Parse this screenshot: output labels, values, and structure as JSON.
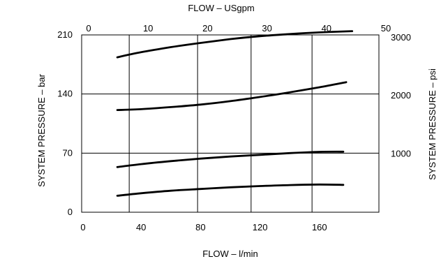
{
  "chart_data": {
    "type": "line",
    "title": "",
    "x_bottom": {
      "label": "FLOW – l/min",
      "lim": [
        0,
        200
      ],
      "ticks": [
        0,
        40,
        80,
        120,
        160
      ],
      "tick_labels": [
        "0",
        "40",
        "80",
        "120",
        "160"
      ]
    },
    "x_top": {
      "label": "FLOW – USgpm",
      "lim": [
        0,
        50
      ],
      "ticks": [
        0,
        10,
        20,
        30,
        40,
        50
      ],
      "tick_labels": [
        "0",
        "10",
        "20",
        "30",
        "40",
        "50"
      ]
    },
    "y_left": {
      "label": "SYSTEM PRESSURE – bar",
      "lim": [
        0,
        210
      ],
      "ticks": [
        0,
        70,
        140,
        210
      ],
      "tick_labels": [
        "0",
        "70",
        "140",
        "210"
      ]
    },
    "y_right": {
      "label": "SYSTEM PRESSURE – psi",
      "ticks": [
        1000,
        2000,
        3000
      ],
      "tick_labels": [
        "1000",
        "2000",
        "3000"
      ]
    },
    "grid": {
      "vertical_lpm": [
        32,
        78,
        114,
        155
      ],
      "horizontal_bar": [
        70,
        140
      ]
    },
    "legend": "none",
    "line_color": "#000000",
    "series": [
      {
        "x": [
          24,
          40,
          60,
          80,
          100,
          120,
          140,
          160,
          176
        ],
        "y": [
          19.5,
          22.5,
          25.5,
          27.5,
          29.5,
          31,
          32.2,
          32.8,
          32.4
        ]
      },
      {
        "x": [
          24,
          40,
          60,
          80,
          100,
          120,
          140,
          160,
          176
        ],
        "y": [
          53.5,
          57,
          60.5,
          63.5,
          66,
          68,
          70,
          71.5,
          71.7
        ]
      },
      {
        "x": [
          24,
          40,
          60,
          80,
          100,
          120,
          140,
          160,
          178
        ],
        "y": [
          121,
          122,
          124.5,
          127.5,
          131.5,
          136.5,
          142,
          148,
          154
        ]
      },
      {
        "x": [
          24,
          40,
          60,
          80,
          100,
          120,
          140,
          160,
          182
        ],
        "y": [
          183.5,
          189.5,
          195.5,
          200.5,
          205,
          208.5,
          211,
          213,
          214.5
        ]
      }
    ]
  }
}
